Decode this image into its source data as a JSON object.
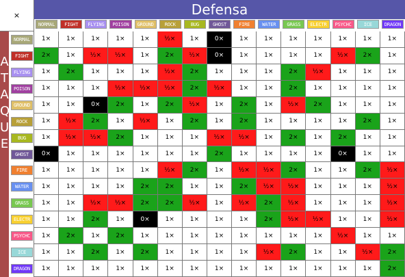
{
  "corner_label": "×",
  "defense_title": "Defensa",
  "attack_title": "ATAQUE",
  "types": [
    {
      "label": "NORMAL",
      "color": "#a8a878"
    },
    {
      "label": "FIGHT",
      "color": "#c03028"
    },
    {
      "label": "FLYING",
      "color": "#a890f0"
    },
    {
      "label": "POISON",
      "color": "#a040a0"
    },
    {
      "label": "GROUND",
      "color": "#e0c068"
    },
    {
      "label": "ROCK",
      "color": "#b8a038"
    },
    {
      "label": "BUG",
      "color": "#a8b820"
    },
    {
      "label": "GHOST",
      "color": "#705898"
    },
    {
      "label": "FIRE",
      "color": "#f08030"
    },
    {
      "label": "WATER",
      "color": "#6890f0"
    },
    {
      "label": "GRASS",
      "color": "#78c850"
    },
    {
      "label": "ELECTR",
      "color": "#f8d030"
    },
    {
      "label": "PSYCHC",
      "color": "#f85888"
    },
    {
      "label": "ICE",
      "color": "#98d8d8"
    },
    {
      "label": "DRAGON",
      "color": "#7038f8"
    }
  ],
  "effect_colors": {
    "1×": "#ffffff",
    "2×": "#1aa31a",
    "½×": "#ff1a1a",
    "0×": "#000000"
  },
  "matrix": [
    [
      "1×",
      "1×",
      "1×",
      "1×",
      "1×",
      "½×",
      "1×",
      "0×",
      "1×",
      "1×",
      "1×",
      "1×",
      "1×",
      "1×",
      "1×"
    ],
    [
      "2×",
      "1×",
      "½×",
      "½×",
      "1×",
      "2×",
      "½×",
      "0×",
      "1×",
      "1×",
      "1×",
      "1×",
      "½×",
      "2×",
      "1×"
    ],
    [
      "1×",
      "2×",
      "1×",
      "1×",
      "1×",
      "½×",
      "2×",
      "1×",
      "1×",
      "1×",
      "2×",
      "½×",
      "1×",
      "1×",
      "1×"
    ],
    [
      "1×",
      "1×",
      "1×",
      "½×",
      "½×",
      "½×",
      "2×",
      "½×",
      "1×",
      "1×",
      "2×",
      "1×",
      "1×",
      "1×",
      "1×"
    ],
    [
      "1×",
      "1×",
      "0×",
      "2×",
      "1×",
      "2×",
      "½×",
      "1×",
      "2×",
      "1×",
      "½×",
      "2×",
      "1×",
      "1×",
      "1×"
    ],
    [
      "1×",
      "½×",
      "2×",
      "1×",
      "½×",
      "1×",
      "2×",
      "1×",
      "2×",
      "1×",
      "1×",
      "1×",
      "1×",
      "2×",
      "1×"
    ],
    [
      "1×",
      "½×",
      "½×",
      "2×",
      "1×",
      "1×",
      "1×",
      "½×",
      "½×",
      "1×",
      "2×",
      "1×",
      "2×",
      "1×",
      "1×"
    ],
    [
      "0×",
      "1×",
      "1×",
      "1×",
      "1×",
      "1×",
      "1×",
      "2×",
      "1×",
      "1×",
      "1×",
      "1×",
      "0×",
      "1×",
      "1×"
    ],
    [
      "1×",
      "1×",
      "1×",
      "1×",
      "1×",
      "½×",
      "2×",
      "1×",
      "½×",
      "½×",
      "2×",
      "1×",
      "1×",
      "2×",
      "½×"
    ],
    [
      "1×",
      "1×",
      "1×",
      "1×",
      "2×",
      "2×",
      "1×",
      "1×",
      "2×",
      "½×",
      "½×",
      "1×",
      "1×",
      "1×",
      "½×"
    ],
    [
      "1×",
      "1×",
      "½×",
      "½×",
      "2×",
      "2×",
      "½×",
      "1×",
      "½×",
      "2×",
      "½×",
      "1×",
      "1×",
      "1×",
      "½×"
    ],
    [
      "1×",
      "1×",
      "2×",
      "1×",
      "0×",
      "1×",
      "1×",
      "1×",
      "1×",
      "2×",
      "½×",
      "½×",
      "1×",
      "1×",
      "½×"
    ],
    [
      "1×",
      "2×",
      "1×",
      "2×",
      "1×",
      "1×",
      "1×",
      "1×",
      "1×",
      "1×",
      "1×",
      "1×",
      "½×",
      "1×",
      "1×"
    ],
    [
      "1×",
      "1×",
      "2×",
      "1×",
      "2×",
      "1×",
      "1×",
      "1×",
      "1×",
      "½×",
      "2×",
      "1×",
      "1×",
      "½×",
      "2×"
    ],
    [
      "1×",
      "1×",
      "1×",
      "1×",
      "1×",
      "1×",
      "1×",
      "1×",
      "1×",
      "1×",
      "1×",
      "1×",
      "1×",
      "1×",
      "2×"
    ]
  ]
}
